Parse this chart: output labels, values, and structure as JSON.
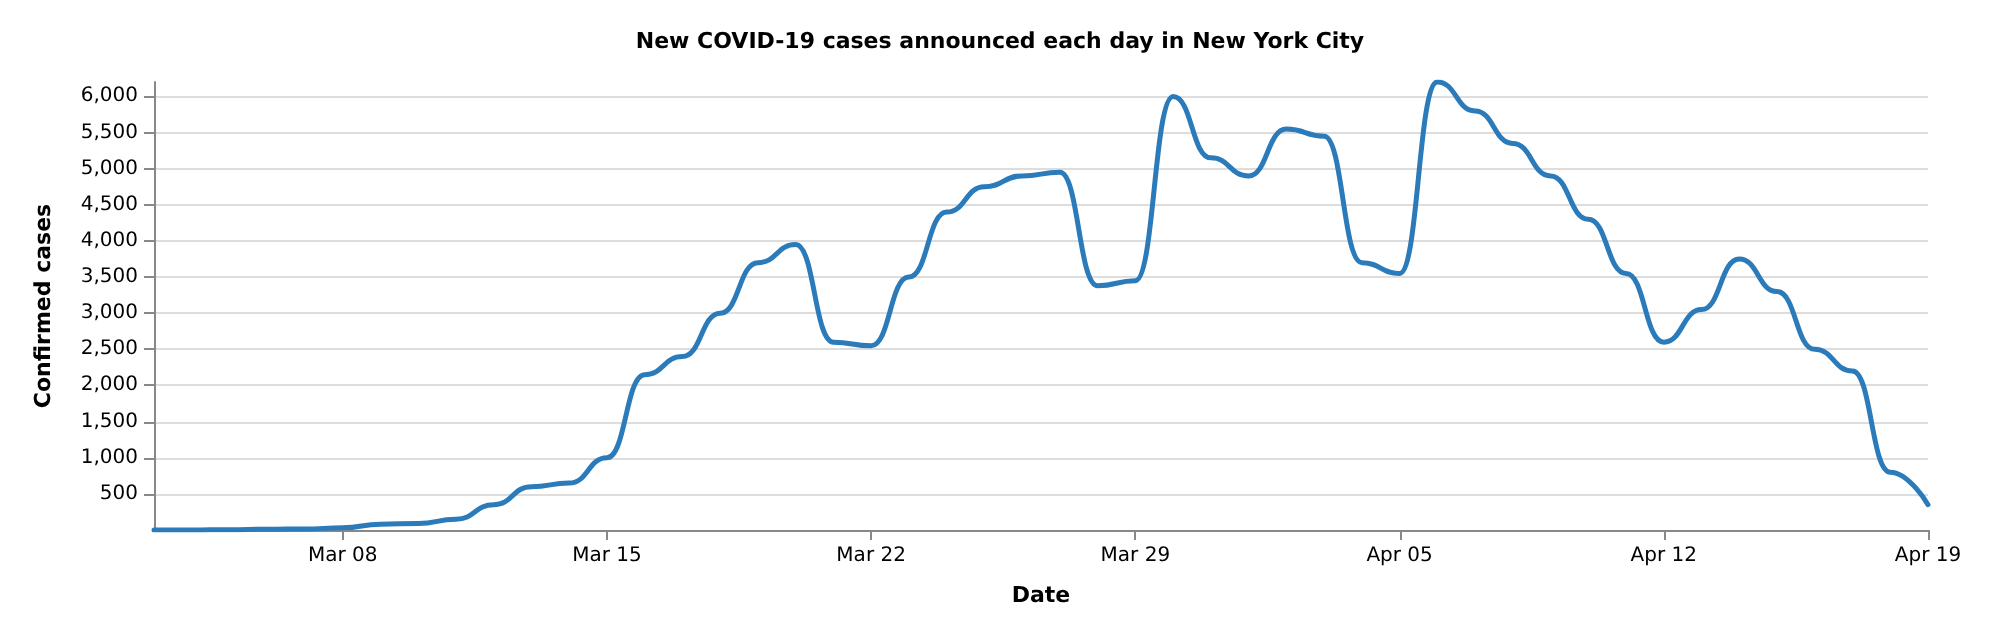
{
  "chart_data": {
    "type": "line",
    "title": "New COVID-19 cases announced each day in New York City",
    "xlabel": "Date",
    "ylabel": "Confirmed cases",
    "x": [
      "--03-03",
      "--03-04",
      "--03-05",
      "--03-06",
      "--03-07",
      "--03-08",
      "--03-09",
      "--03-10",
      "--03-11",
      "--03-12",
      "--03-13",
      "--03-14",
      "--03-15",
      "--03-16",
      "--03-17",
      "--03-18",
      "--03-19",
      "--03-20",
      "--03-21",
      "--03-22",
      "--03-23",
      "--03-24",
      "--03-25",
      "--03-26",
      "--03-27",
      "--03-28",
      "--03-29",
      "--03-30",
      "--03-31",
      "--04-01",
      "--04-02",
      "--04-03",
      "--04-04",
      "--04-05",
      "--04-06",
      "--04-07",
      "--04-08",
      "--04-09",
      "--04-10",
      "--04-11",
      "--04-12",
      "--04-13",
      "--04-14",
      "--04-15",
      "--04-16",
      "--04-17",
      "--04-18",
      "--04-19"
    ],
    "series": [
      {
        "color": "#2b7bba",
        "values": [
          0,
          0,
          5,
          10,
          15,
          30,
          80,
          90,
          150,
          350,
          600,
          650,
          1000,
          2150,
          2400,
          3000,
          3700,
          3950,
          2600,
          2550,
          3500,
          4400,
          4750,
          4900,
          4950,
          3380,
          3450,
          6000,
          5150,
          4900,
          5550,
          5450,
          3700,
          3550,
          6200,
          5800,
          5350,
          4900,
          4300,
          3550,
          2600,
          3050,
          3750,
          3300,
          2500,
          2200,
          800,
          350
        ]
      }
    ],
    "xlim": [
      "--03-03",
      "--04-19"
    ],
    "xticks": [
      {
        "value": "--03-08",
        "label": "Mar 08"
      },
      {
        "value": "--03-15",
        "label": "Mar 15"
      },
      {
        "value": "--03-22",
        "label": "Mar 22"
      },
      {
        "value": "--03-29",
        "label": "Mar 29"
      },
      {
        "value": "--04-05",
        "label": "Apr 05"
      },
      {
        "value": "--04-12",
        "label": "Apr 12"
      },
      {
        "value": "--04-19",
        "label": "Apr 19"
      }
    ],
    "ylim": [
      0,
      6200
    ],
    "yticks": [
      {
        "value": 500,
        "label": "500"
      },
      {
        "value": 1000,
        "label": "1,000"
      },
      {
        "value": 1500,
        "label": "1,500"
      },
      {
        "value": 2000,
        "label": "2,000"
      },
      {
        "value": 2500,
        "label": "2,500"
      },
      {
        "value": 3000,
        "label": "3,000"
      },
      {
        "value": 3500,
        "label": "3,500"
      },
      {
        "value": 4000,
        "label": "4,000"
      },
      {
        "value": 4500,
        "label": "4,500"
      },
      {
        "value": 5000,
        "label": "5,000"
      },
      {
        "value": 5500,
        "label": "5,500"
      },
      {
        "value": 6000,
        "label": "6,000"
      }
    ],
    "grid": "y",
    "marker": "none",
    "line_style": "solid"
  }
}
